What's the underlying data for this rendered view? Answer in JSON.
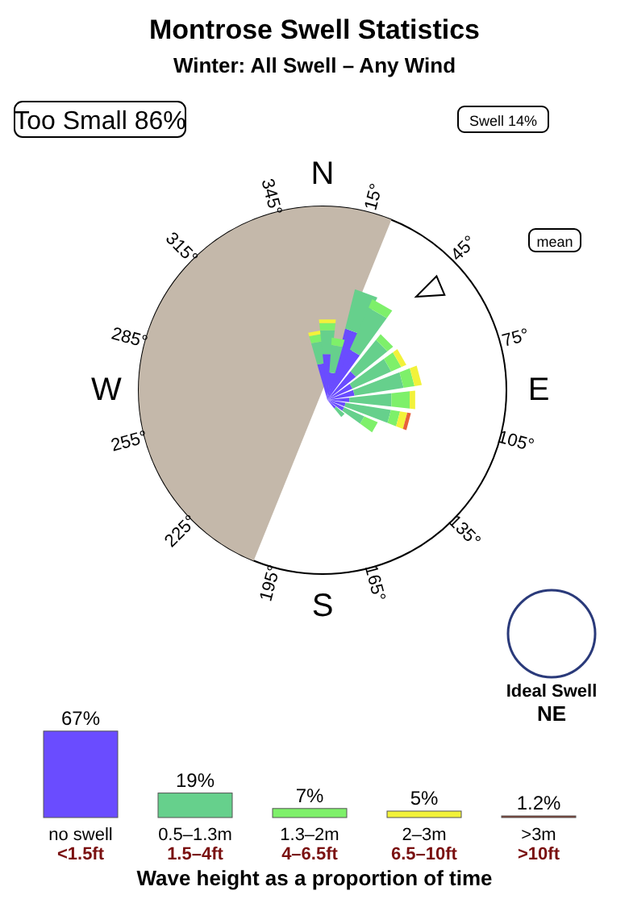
{
  "chart_data": [
    {
      "type": "other",
      "title": "Montrose Swell Statistics",
      "subtitle": "Winter: All Swell – Any Wind",
      "categories": [
        "15°",
        "45°",
        "75°",
        "105°",
        "135°",
        "165°",
        "195°",
        "225°",
        "255°",
        "285°",
        "315°",
        "345°"
      ],
      "annotations": [
        "Too Small 86%",
        "Swell 14%",
        "mean",
        "Ideal Swell",
        "NE",
        "N",
        "E",
        "S",
        "W"
      ]
    },
    {
      "type": "bar",
      "categories": [
        "no swell\n<1.5ft",
        "0.5–1.3m\n1.5–4ft",
        "1.3–2m\n4–6.5ft",
        "2–3m\n6.5–10ft",
        ">3m\n>10ft"
      ],
      "values": [
        67,
        19,
        7,
        5,
        1.2
      ],
      "colors": [
        "#6a4cff",
        "#66d08c",
        "#7ef06a",
        "#f2f23a",
        "#8b3a2a"
      ],
      "value_labels": [
        "67%",
        "19%",
        "7%",
        "5%",
        "1.2%"
      ],
      "xlabel": "Wave height as a proportion of time"
    }
  ]
}
